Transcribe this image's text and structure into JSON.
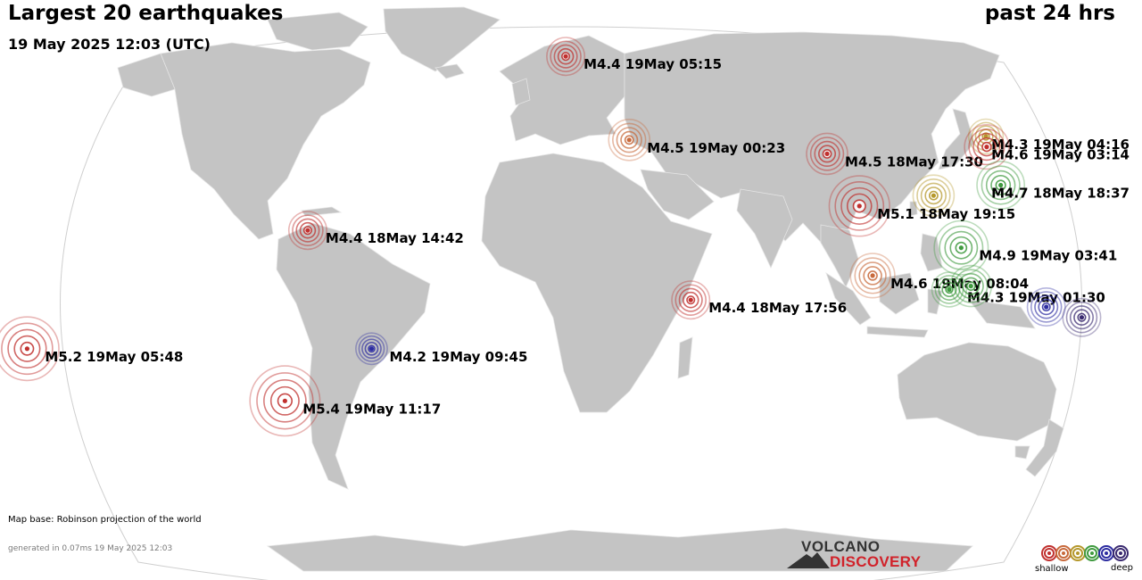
{
  "header": {
    "title": "Largest 20 earthquakes",
    "timestamp": "19 May 2025 12:03 (UTC)",
    "period": "past 24 hrs"
  },
  "footer": {
    "map_base": "Map base: Robinson projection of the world",
    "generated": "generated in 0.07ms 19 May 2025 12:03"
  },
  "logo": {
    "line1": "VOLCANO",
    "line2": "DISCOVERY"
  },
  "legend": {
    "shallow_label": "shallow",
    "deep_label": "deep",
    "depth_colors": [
      "#c0302e",
      "#c86a3c",
      "#b5982c",
      "#3f9a3f",
      "#2c2ca0",
      "#3a2a70"
    ]
  },
  "map": {
    "projection": "Robinson",
    "land_color": "#c4c4c4",
    "ocean_color": "#ffffff"
  },
  "earthquakes": [
    {
      "label": "M4.4 19May 05:15",
      "lon": -2,
      "lat": 62,
      "magnitude": 4.4,
      "depth_color": "#c0302e"
    },
    {
      "label": "M4.5 19May 00:23",
      "lon": 20,
      "lat": 38,
      "magnitude": 4.5,
      "depth_color": "#c86a3c"
    },
    {
      "label": "M4.5 18May 17:30",
      "lon": 87,
      "lat": 34,
      "magnitude": 4.5,
      "depth_color": "#c0302e"
    },
    {
      "label": "M4.3 19May 04:16",
      "lon": 143,
      "lat": 39,
      "magnitude": 4.3,
      "depth_color": "#b5982c"
    },
    {
      "label": "M4.6 19May 03:14",
      "lon": 142,
      "lat": 36,
      "magnitude": 4.6,
      "depth_color": "#c0302e"
    },
    {
      "label": "M4.7 18May 18:37",
      "lon": 143,
      "lat": 25,
      "magnitude": 4.7,
      "depth_color": "#3f9a3f"
    },
    {
      "label": "",
      "lon": 120,
      "lat": 22,
      "magnitude": 4.5,
      "depth_color": "#b5982c"
    },
    {
      "label": "M5.1 18May 19:15",
      "lon": 95,
      "lat": 19,
      "magnitude": 5.1,
      "depth_color": "#c0302e"
    },
    {
      "label": "M4.9 19May 03:41",
      "lon": 127,
      "lat": 7,
      "magnitude": 4.9,
      "depth_color": "#3f9a3f"
    },
    {
      "label": "M4.6 19May 08:04",
      "lon": 98,
      "lat": -1,
      "magnitude": 4.6,
      "depth_color": "#c86a3c"
    },
    {
      "label": "M4.3 19May 01:30",
      "lon": 123,
      "lat": -5,
      "magnitude": 4.3,
      "depth_color": "#3f9a3f"
    },
    {
      "label": "",
      "lon": 130,
      "lat": -4,
      "magnitude": 4.5,
      "depth_color": "#3f9a3f"
    },
    {
      "label": "M4.4 18May 17:56",
      "lon": 39,
      "lat": -8,
      "magnitude": 4.4,
      "depth_color": "#c0302e"
    },
    {
      "label": "",
      "lon": 155,
      "lat": -10,
      "magnitude": 4.4,
      "depth_color": "#2c2ca0"
    },
    {
      "label": "",
      "lon": 167,
      "lat": -13,
      "magnitude": 4.4,
      "depth_color": "#3a2a70"
    },
    {
      "label": "M5.2 19May 05:48",
      "lon": -180,
      "lat": -22,
      "magnitude": 5.2,
      "depth_color": "#c0302e"
    },
    {
      "label": "M4.4 18May 14:42",
      "lon": -86,
      "lat": 12,
      "magnitude": 4.4,
      "depth_color": "#c0302e"
    },
    {
      "label": "M4.2 19May 09:45",
      "lon": -66,
      "lat": -22,
      "magnitude": 4.2,
      "depth_color": "#2c2ca0"
    },
    {
      "label": "M5.4 19May 11:17",
      "lon": -98,
      "lat": -37,
      "magnitude": 5.4,
      "depth_color": "#c0302e"
    }
  ]
}
